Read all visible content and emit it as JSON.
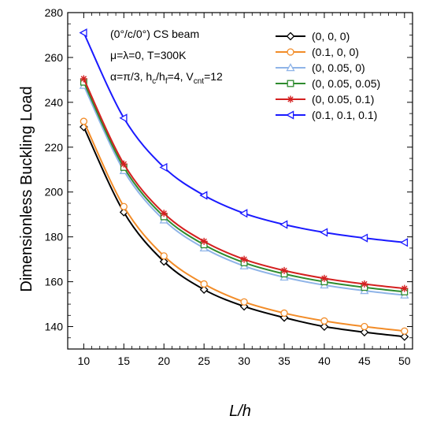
{
  "chart_data": {
    "type": "line",
    "xlabel_main": "L",
    "xlabel_sub": "/h",
    "ylabel": "Dimensionless Buckling Load",
    "xlim": [
      8,
      51
    ],
    "ylim": [
      130,
      280
    ],
    "xticks": [
      10,
      15,
      20,
      25,
      30,
      35,
      40,
      45,
      50
    ],
    "yticks": [
      140,
      160,
      180,
      200,
      220,
      240,
      260,
      280
    ],
    "grid": false,
    "legend_position": "top-right",
    "annotations": {
      "line1": "(0°/c/0°) CS beam",
      "line2": "μ=λ=0, T=300K",
      "line3_a": "α=π/3, h",
      "line3_sub1": "c",
      "line3_b": "/h",
      "line3_sub2": "f",
      "line3_c": "=4, V",
      "line3_sub3": "cnt",
      "line3_d": "=12"
    },
    "x": [
      10,
      15,
      20,
      25,
      30,
      35,
      40,
      45,
      50
    ],
    "series": [
      {
        "name": "(0, 0, 0)",
        "color": "#000000",
        "marker": "diamond",
        "values": [
          229,
          191,
          169,
          156.5,
          149,
          144,
          140,
          137.5,
          135.5
        ]
      },
      {
        "name": "(0.1, 0, 0)",
        "color": "#f28c28",
        "marker": "circle",
        "values": [
          231.5,
          193.5,
          171.5,
          159,
          151,
          146,
          142.5,
          140,
          138
        ]
      },
      {
        "name": "(0, 0.05, 0)",
        "color": "#8fb4e8",
        "marker": "triangle-up",
        "values": [
          247.5,
          209.5,
          187.5,
          175,
          167,
          162,
          158.5,
          156,
          154
        ]
      },
      {
        "name": "(0, 0.05, 0.05)",
        "color": "#2e8b2e",
        "marker": "square",
        "values": [
          249,
          211,
          189,
          176.5,
          168.5,
          163.5,
          160,
          157.5,
          155.5
        ]
      },
      {
        "name": "(0, 0.05, 0.1)",
        "color": "#d42020",
        "marker": "asterisk",
        "values": [
          250.5,
          212.5,
          190.5,
          178,
          170,
          165,
          161.5,
          159,
          157
        ]
      },
      {
        "name": "(0.1, 0.1, 0.1)",
        "color": "#1a1aff",
        "marker": "triangle-left",
        "values": [
          271,
          233,
          211,
          198.5,
          190.5,
          185.5,
          182,
          179.5,
          177.5
        ]
      }
    ]
  }
}
